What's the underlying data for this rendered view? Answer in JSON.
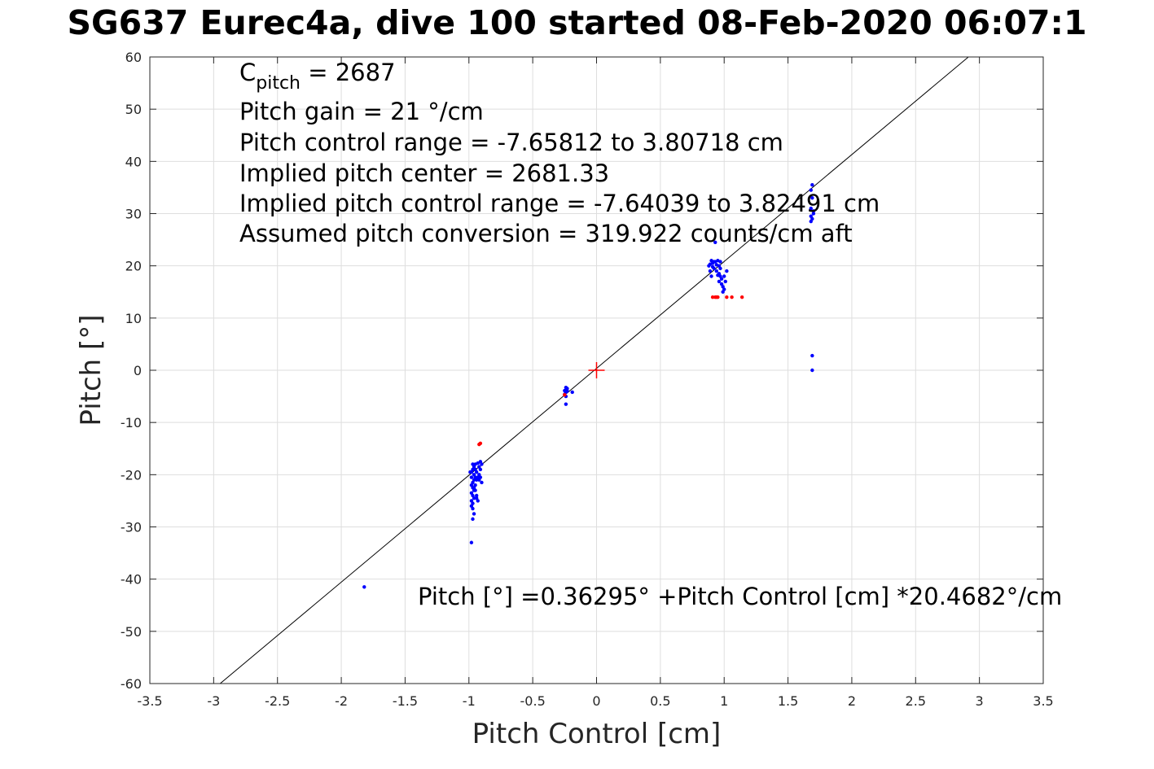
{
  "chart_data": {
    "type": "scatter",
    "title": "SG637 Eurec4a, dive 100 started 08-Feb-2020 06:07:1",
    "xlabel": "Pitch Control [cm]",
    "ylabel": "Pitch [°]",
    "xlim": [
      -3.5,
      3.5
    ],
    "ylim": [
      -60,
      60
    ],
    "xticks": [
      -3.5,
      -3,
      -2.5,
      -2,
      -1.5,
      -1,
      -0.5,
      0,
      0.5,
      1,
      1.5,
      2,
      2.5,
      3,
      3.5
    ],
    "xtick_labels": [
      "-3.5",
      "-3",
      "-2.5",
      "-2",
      "-1.5",
      "-1",
      "-0.5",
      "0",
      "0.5",
      "1",
      "1.5",
      "2",
      "2.5",
      "3",
      "3.5"
    ],
    "yticks": [
      -60,
      -50,
      -40,
      -30,
      -20,
      -10,
      0,
      10,
      20,
      30,
      40,
      50,
      60
    ],
    "ytick_labels": [
      "-60",
      "-50",
      "-40",
      "-30",
      "-20",
      "-10",
      "0",
      "10",
      "20",
      "30",
      "40",
      "50",
      "60"
    ],
    "grid": true,
    "colors": {
      "good": "#0000ff",
      "bad": "#ff0000",
      "fit": "#000000",
      "center": "#ff0000",
      "grid": "#dedede",
      "axis": "#262626"
    },
    "fit_line": {
      "intercept": 0.36295,
      "slope": 20.4682
    },
    "center_marker": {
      "x": 0,
      "y": 0
    },
    "series": [
      {
        "color": "#0000ff",
        "points": [
          [
            -1.82,
            -41.5
          ],
          [
            -0.98,
            -33
          ],
          [
            -0.97,
            -28.5
          ],
          [
            -0.96,
            -27.5
          ],
          [
            -0.97,
            -26.5
          ],
          [
            -0.98,
            -26
          ],
          [
            -0.97,
            -25.5
          ],
          [
            -0.98,
            -25
          ],
          [
            -0.96,
            -24.5
          ],
          [
            -0.97,
            -24
          ],
          [
            -0.98,
            -23.5
          ],
          [
            -0.96,
            -23
          ],
          [
            -0.97,
            -22.5
          ],
          [
            -0.98,
            -22
          ],
          [
            -0.97,
            -21.5
          ],
          [
            -0.96,
            -21
          ],
          [
            -0.95,
            -22
          ],
          [
            -0.94,
            -24
          ],
          [
            -0.93,
            -25
          ],
          [
            -0.94,
            -24.5
          ],
          [
            -0.93,
            -20.5
          ],
          [
            -0.92,
            -21
          ],
          [
            -0.91,
            -20.5
          ],
          [
            -0.9,
            -21.5
          ],
          [
            -0.92,
            -20
          ],
          [
            -0.94,
            -19.5
          ],
          [
            -0.95,
            -19
          ],
          [
            -0.96,
            -18.5
          ],
          [
            -0.97,
            -18
          ],
          [
            -0.98,
            -19.5
          ],
          [
            -0.98,
            -20.5
          ],
          [
            -0.96,
            -20
          ],
          [
            -0.95,
            -18
          ],
          [
            -0.93,
            -17.8
          ],
          [
            -0.92,
            -18.5
          ],
          [
            -0.91,
            -17.5
          ],
          [
            -0.9,
            -18
          ],
          [
            -0.91,
            -19
          ],
          [
            -0.94,
            -21
          ],
          [
            -0.95,
            -20.5
          ],
          [
            -0.97,
            -19
          ],
          [
            -0.99,
            -19.5
          ],
          [
            -0.96,
            -22.5
          ],
          [
            -0.95,
            -23
          ],
          [
            -0.24,
            -3.3
          ],
          [
            -0.24,
            -3.8
          ],
          [
            -0.24,
            -4.2
          ],
          [
            -0.25,
            -4.6
          ],
          [
            -0.23,
            -3.5
          ],
          [
            -0.23,
            -4.0
          ],
          [
            -0.24,
            -5.0
          ],
          [
            -0.25,
            -3.9
          ],
          [
            -0.19,
            -4.2
          ],
          [
            -0.24,
            -6.5
          ],
          [
            0.88,
            20
          ],
          [
            0.89,
            19
          ],
          [
            0.9,
            18
          ],
          [
            0.91,
            20.5
          ],
          [
            0.92,
            19.5
          ],
          [
            0.93,
            20.8
          ],
          [
            0.94,
            19
          ],
          [
            0.95,
            21
          ],
          [
            0.96,
            20
          ],
          [
            0.97,
            19.5
          ],
          [
            0.93,
            24.5
          ],
          [
            0.9,
            21
          ],
          [
            0.92,
            20.8
          ],
          [
            0.94,
            20.2
          ],
          [
            0.96,
            18.5
          ],
          [
            0.98,
            17.5
          ],
          [
            0.97,
            18
          ],
          [
            0.99,
            16
          ],
          [
            1.0,
            15.5
          ],
          [
            1.01,
            17
          ],
          [
            0.98,
            16.5
          ],
          [
            1.0,
            18
          ],
          [
            0.99,
            15
          ],
          [
            1.02,
            19
          ],
          [
            0.95,
            18.2
          ],
          [
            0.97,
            20.8
          ],
          [
            0.91,
            19.8
          ],
          [
            0.89,
            20.3
          ],
          [
            0.96,
            17
          ],
          [
            1.68,
            28.5
          ],
          [
            1.69,
            29
          ],
          [
            1.7,
            30
          ],
          [
            1.68,
            31
          ],
          [
            1.7,
            30.5
          ],
          [
            1.69,
            33
          ],
          [
            1.68,
            34.5
          ],
          [
            1.69,
            35.5
          ],
          [
            1.68,
            29.5
          ],
          [
            1.69,
            2.8
          ],
          [
            1.69,
            0
          ]
        ]
      },
      {
        "color": "#ff0000",
        "points": [
          [
            -0.91,
            -14
          ],
          [
            -0.92,
            -14.2
          ],
          [
            -0.25,
            -4.7
          ],
          [
            0.91,
            14
          ],
          [
            0.93,
            14
          ],
          [
            0.94,
            14
          ],
          [
            0.95,
            14
          ],
          [
            1.02,
            14
          ],
          [
            1.06,
            14
          ],
          [
            1.14,
            14
          ]
        ]
      }
    ]
  },
  "annotations": {
    "c_pitch_main": "C",
    "c_pitch_sub": "pitch",
    "c_pitch_value": " = 2687",
    "pitch_gain": "Pitch gain = 21 °/cm",
    "pitch_control_range": "Pitch control range = -7.65812 to 3.80718 cm",
    "implied_pitch_center": "Implied pitch center = 2681.33",
    "implied_control_range": "Implied pitch control range = -7.64039 to 3.82491 cm",
    "assumed_conversion": "Assumed pitch conversion = 319.922 counts/cm aft",
    "fit_equation": "Pitch [°] =0.36295° +Pitch Control [cm] *20.4682°/cm"
  }
}
